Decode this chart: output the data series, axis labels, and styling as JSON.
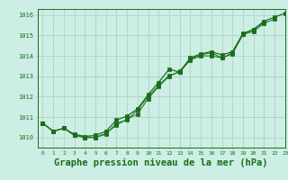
{
  "background_color": "#cceee4",
  "grid_color": "#aaccbb",
  "line_color": "#1a6e1a",
  "marker_color": "#1a6e1a",
  "title": "Graphe pression niveau de la mer (hPa)",
  "title_fontsize": 7.5,
  "xlim": [
    -0.5,
    23
  ],
  "ylim": [
    1009.5,
    1016.3
  ],
  "yticks": [
    1010,
    1011,
    1012,
    1013,
    1014,
    1015,
    1016
  ],
  "xticks": [
    0,
    1,
    2,
    3,
    4,
    5,
    6,
    7,
    8,
    9,
    10,
    11,
    12,
    13,
    14,
    15,
    16,
    17,
    18,
    19,
    20,
    21,
    22,
    23
  ],
  "series1_x": [
    0,
    1,
    2,
    3,
    4,
    5,
    6,
    7,
    8,
    9,
    10,
    11,
    12,
    13,
    14,
    15,
    16,
    17,
    18,
    19,
    20,
    21
  ],
  "series1_y": [
    1010.7,
    1010.3,
    1010.45,
    1010.1,
    1010.0,
    1010.0,
    1010.15,
    1010.7,
    1010.85,
    1011.35,
    1012.0,
    1012.55,
    1013.05,
    1013.2,
    1013.8,
    1014.0,
    1014.0,
    1013.9,
    1014.1,
    1015.05,
    1015.3,
    1015.65
  ],
  "series2_x": [
    0,
    1,
    2,
    3,
    4,
    5,
    6,
    7,
    8,
    9,
    10,
    11,
    12,
    13,
    14,
    15,
    16,
    17,
    18,
    19,
    20,
    21,
    22
  ],
  "series2_y": [
    1010.7,
    1010.3,
    1010.45,
    1010.1,
    1010.0,
    1010.0,
    1010.2,
    1010.6,
    1010.9,
    1011.15,
    1011.9,
    1012.5,
    1013.0,
    1013.25,
    1013.85,
    1014.05,
    1014.15,
    1013.9,
    1014.15,
    1015.05,
    1015.2,
    1015.6,
    1015.8
  ],
  "series3_x": [
    0,
    1,
    2,
    3,
    4,
    5,
    6,
    7,
    8,
    9,
    10,
    11,
    12,
    13,
    14,
    15,
    16,
    17,
    18,
    19,
    20,
    21,
    22,
    23
  ],
  "series3_y": [
    1010.7,
    1010.3,
    1010.45,
    1010.15,
    1010.05,
    1010.1,
    1010.3,
    1010.85,
    1011.05,
    1011.4,
    1012.1,
    1012.7,
    1013.35,
    1013.2,
    1013.9,
    1014.1,
    1014.2,
    1014.05,
    1014.2,
    1015.1,
    1015.3,
    1015.7,
    1015.9,
    1016.1
  ]
}
